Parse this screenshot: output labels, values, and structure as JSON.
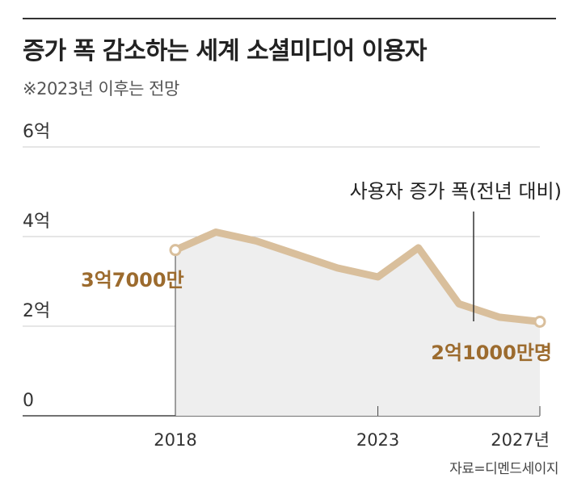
{
  "header": {
    "title": "증가 폭 감소하는 세계 소셜미디어 이용자",
    "subtitle": "※2023년 이후는 전망"
  },
  "source": "자료=디멘드세이지",
  "colors": {
    "line": "#d9bf9c",
    "area": "#eeeeee",
    "label": "#9c6b2e",
    "grid": "#cccccc"
  },
  "chart_data": {
    "type": "area",
    "x": [
      2018,
      2019,
      2020,
      2021,
      2022,
      2023,
      2024,
      2025,
      2026,
      2027
    ],
    "values": [
      3.7,
      4.1,
      3.9,
      3.6,
      3.3,
      3.1,
      3.75,
      2.5,
      2.2,
      2.1
    ],
    "yunit": "억",
    "ylim": [
      0,
      6
    ],
    "yticks": [
      "0",
      "2억",
      "4억",
      "6억"
    ],
    "ytick_values": [
      0,
      2,
      4,
      6
    ],
    "xticks": [
      "2018",
      "2023",
      "2027년"
    ],
    "xtick_values": [
      2018,
      2023,
      2027
    ],
    "start_label": "3억7000만",
    "end_label": "2억1000만명",
    "annotation": "사용자 증가 폭(전년 대비)",
    "grid": true
  }
}
